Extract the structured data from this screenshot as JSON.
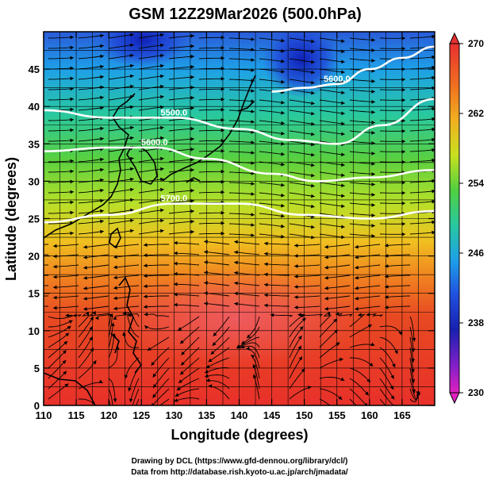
{
  "title": "GSM 12Z29Mar2026 (500.0hPa)",
  "xaxis": {
    "label": "Longitude (degrees)",
    "range": [
      110,
      170
    ],
    "ticks": [
      "110",
      "115",
      "120",
      "125",
      "130",
      "135",
      "140",
      "145",
      "150",
      "155",
      "160",
      "165"
    ]
  },
  "yaxis": {
    "label": "Latitude (degrees)",
    "range": [
      0,
      50
    ],
    "ticks": [
      "0",
      "5",
      "10",
      "15",
      "20",
      "25",
      "30",
      "35",
      "40",
      "45"
    ]
  },
  "colorbar": {
    "labels": [
      "270",
      "262",
      "254",
      "246",
      "238",
      "230"
    ],
    "min": 230,
    "max": 270
  },
  "contours": [
    {
      "label": "5700.0",
      "lat_at": [
        [
          110,
          24.5
        ],
        [
          120,
          25.5
        ],
        [
          130,
          27
        ],
        [
          140,
          27
        ],
        [
          150,
          25.5
        ],
        [
          160,
          25
        ],
        [
          170,
          26
        ]
      ]
    },
    {
      "label": "5600.0",
      "lat_at": [
        [
          110,
          34
        ],
        [
          120,
          34.5
        ],
        [
          127,
          34.5
        ],
        [
          135,
          33
        ],
        [
          145,
          31
        ],
        [
          152,
          30
        ],
        [
          160,
          30.5
        ],
        [
          170,
          31.5
        ]
      ]
    },
    {
      "label": "5500.0",
      "lat_at": [
        [
          110,
          39.5
        ],
        [
          120,
          38.5
        ],
        [
          130,
          38.5
        ],
        [
          140,
          37
        ],
        [
          148,
          35.5
        ],
        [
          155,
          35
        ],
        [
          162,
          37.5
        ],
        [
          170,
          41
        ]
      ]
    },
    {
      "label": "5600.0",
      "lat_at": [
        [
          145,
          42
        ],
        [
          150,
          42.5
        ],
        [
          155,
          43
        ],
        [
          160,
          45
        ],
        [
          165,
          46.5
        ],
        [
          170,
          48
        ]
      ]
    }
  ],
  "credits": {
    "line1": "Drawing by DCL (https://www.gfd-dennou.org/library/dcl/)",
    "line2": "Data from http://database.rish.kyoto-u.ac.jp/arch/jmadata/"
  },
  "colors": {
    "warm": "#e8302a",
    "cold": "#1a30c8",
    "contour": "#ffffff",
    "streamline": "#000000"
  }
}
